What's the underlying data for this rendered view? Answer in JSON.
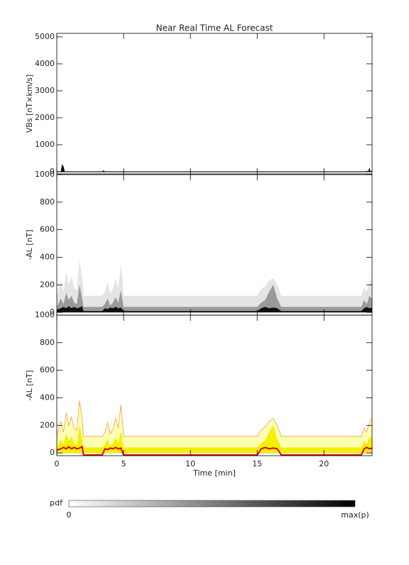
{
  "chart_data": [
    {
      "type": "area",
      "title": "Near Real Time AL Forecast",
      "y_label": "VBs [nT×km/s]",
      "x": [
        0,
        0.3,
        0.4,
        0.5,
        0.6,
        3.4,
        3.5,
        3.6,
        14.9,
        15.0,
        15.1,
        23.1,
        23.2,
        23.3,
        23.4,
        23.5,
        23.6
      ],
      "series": [
        {
          "color": "#000000",
          "kind": "area",
          "values": [
            0,
            0,
            280,
            200,
            0,
            0,
            60,
            0,
            0,
            15,
            0,
            0,
            40,
            0,
            150,
            0,
            60
          ]
        }
      ],
      "xlim": [
        0,
        23.6
      ],
      "xticks": [
        0,
        5,
        10,
        15,
        20
      ],
      "show_xtick_labels": false,
      "ylim": [
        -80,
        5130
      ],
      "yticks": [
        0,
        1000,
        2000,
        3000,
        4000,
        5000
      ]
    },
    {
      "type": "area",
      "y_label": "-AL [nT]",
      "x": [
        0,
        0.3,
        0.5,
        0.7,
        0.9,
        1.1,
        1.3,
        1.5,
        1.7,
        1.9,
        2.0,
        3.4,
        3.6,
        3.8,
        4.0,
        4.2,
        4.4,
        4.6,
        4.8,
        5.0,
        15.0,
        15.3,
        15.6,
        15.9,
        16.2,
        16.5,
        16.8,
        22.8,
        23.0,
        23.2,
        23.4,
        23.6
      ],
      "series": [
        {
          "color": "#e4e4e4",
          "kind": "area",
          "values": [
            120,
            230,
            150,
            290,
            200,
            260,
            180,
            160,
            380,
            250,
            120,
            120,
            150,
            220,
            140,
            170,
            250,
            180,
            350,
            120,
            120,
            170,
            190,
            230,
            250,
            200,
            120,
            120,
            180,
            150,
            220,
            250
          ]
        },
        {
          "color": "#9a9a9a",
          "kind": "area",
          "values": [
            40,
            100,
            60,
            140,
            90,
            120,
            70,
            60,
            200,
            100,
            40,
            40,
            60,
            100,
            50,
            70,
            110,
            70,
            160,
            40,
            40,
            70,
            90,
            150,
            200,
            100,
            40,
            40,
            90,
            60,
            120,
            100
          ]
        },
        {
          "color": "#101010",
          "kind": "area",
          "values": [
            20,
            30,
            40,
            30,
            45,
            30,
            40,
            30,
            35,
            45,
            10,
            10,
            30,
            25,
            35,
            30,
            40,
            30,
            35,
            10,
            10,
            30,
            40,
            30,
            35,
            30,
            10,
            10,
            30,
            40,
            30,
            35
          ]
        }
      ],
      "xlim": [
        0,
        23.6
      ],
      "xticks": [
        0,
        5,
        10,
        15,
        20
      ],
      "show_xtick_labels": false,
      "ylim": [
        -20,
        1000
      ],
      "yticks": [
        0,
        200,
        400,
        600,
        800,
        1000
      ]
    },
    {
      "type": "area",
      "y_label": "-AL [nT]",
      "x_label": "Time [min]",
      "x": [
        0,
        0.3,
        0.5,
        0.7,
        0.9,
        1.1,
        1.3,
        1.5,
        1.7,
        1.9,
        2.0,
        3.4,
        3.6,
        3.8,
        4.0,
        4.2,
        4.4,
        4.6,
        4.8,
        5.0,
        15.0,
        15.3,
        15.6,
        15.9,
        16.2,
        16.5,
        16.8,
        22.8,
        23.0,
        23.2,
        23.4,
        23.6
      ],
      "series": [
        {
          "color": "#ffffb4",
          "kind": "area",
          "stroke": "#f0a040",
          "values": [
            120,
            230,
            150,
            290,
            200,
            260,
            180,
            160,
            380,
            250,
            120,
            120,
            150,
            220,
            140,
            170,
            250,
            180,
            350,
            120,
            120,
            170,
            190,
            230,
            250,
            200,
            120,
            120,
            180,
            150,
            220,
            250
          ]
        },
        {
          "color": "#f2f000",
          "kind": "area",
          "values": [
            40,
            100,
            60,
            140,
            90,
            120,
            70,
            60,
            200,
            100,
            40,
            40,
            60,
            100,
            50,
            70,
            110,
            70,
            160,
            40,
            40,
            70,
            90,
            150,
            200,
            100,
            40,
            40,
            90,
            60,
            120,
            100
          ]
        },
        {
          "color": "#e00000",
          "kind": "line",
          "values": [
            20,
            30,
            40,
            30,
            45,
            30,
            40,
            30,
            35,
            45,
            -15,
            -15,
            30,
            25,
            35,
            30,
            40,
            30,
            35,
            -15,
            -15,
            30,
            40,
            30,
            35,
            30,
            -15,
            -15,
            30,
            40,
            30,
            35
          ]
        }
      ],
      "xlim": [
        0,
        23.6
      ],
      "xticks": [
        0,
        5,
        10,
        15,
        20
      ],
      "show_xtick_labels": true,
      "ylim": [
        -20,
        1000
      ],
      "yticks": [
        0,
        200,
        400,
        600,
        800,
        1000
      ]
    }
  ],
  "colorbar": {
    "label": "pdf",
    "min_label": "0",
    "max_label": "max(p)"
  }
}
